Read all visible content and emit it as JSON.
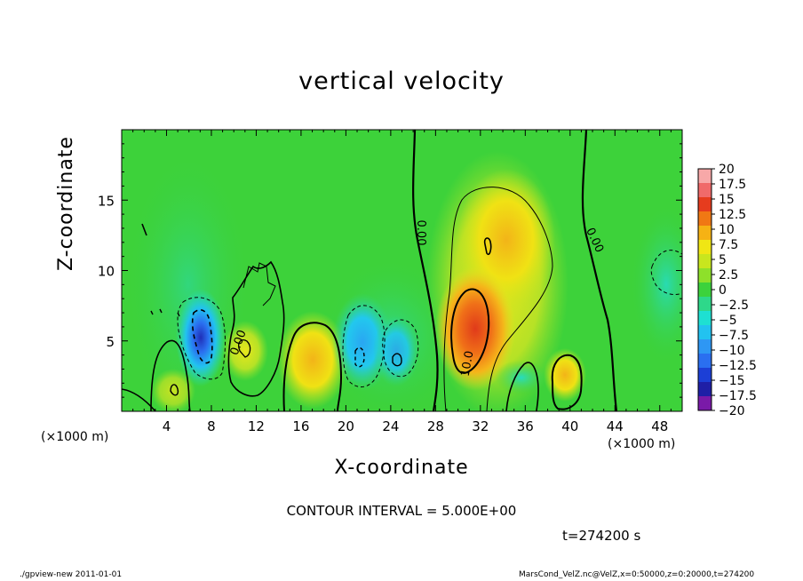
{
  "title": "vertical velocity",
  "chart_data": {
    "type": "heatmap",
    "title": "vertical velocity",
    "xlabel": "X-coordinate",
    "ylabel": "Z-coordinate",
    "x_unit": "(×1000 m)",
    "y_unit": "(×1000 m)",
    "xlim": [
      0,
      50
    ],
    "ylim": [
      0,
      20
    ],
    "xticks": [
      4,
      8,
      12,
      16,
      20,
      24,
      28,
      32,
      36,
      40,
      44,
      48
    ],
    "yticks": [
      5,
      10,
      15
    ],
    "colorbar": {
      "levels": [
        -20,
        -17.5,
        -15,
        -12.5,
        -10,
        -7.5,
        -5,
        -2.5,
        0,
        2.5,
        5,
        7.5,
        10,
        12.5,
        15,
        17.5,
        20
      ],
      "labels": [
        "20",
        "17.5",
        "15",
        "12.5",
        "10",
        "7.5",
        "5",
        "2.5",
        "0",
        "−2.5",
        "−5",
        "−7.5",
        "−10",
        "−12.5",
        "−15",
        "−17.5",
        "−20"
      ],
      "colors": [
        "#7a1aa8",
        "#1f1fa6",
        "#1c3fd6",
        "#2a6ff0",
        "#2e97f4",
        "#22c2f0",
        "#1ee0d2",
        "#2ed88a",
        "#3cd23c",
        "#8ee02a",
        "#c8e61e",
        "#f0e614",
        "#f6b214",
        "#f07814",
        "#e63c1e",
        "#f06a6a",
        "#f7a8a8"
      ]
    },
    "features": [
      {
        "x": 31,
        "z": 6,
        "value": 15,
        "sign": "updraft"
      },
      {
        "x": 32.5,
        "z": 11,
        "value": 9
      },
      {
        "x": 17.5,
        "z": 3.5,
        "value": 8
      },
      {
        "x": 39.5,
        "z": 2.5,
        "value": 8
      },
      {
        "x": 11,
        "z": 4,
        "value": 7
      },
      {
        "x": 7,
        "z": 4.5,
        "value": -14,
        "sign": "downdraft"
      },
      {
        "x": 21,
        "z": 4,
        "value": -9
      },
      {
        "x": 24,
        "z": 4,
        "value": -7
      },
      {
        "x": 48,
        "z": 9,
        "value": -3
      }
    ],
    "contour_labels": [
      "0.00",
      "0.00",
      "0.00",
      "10.0"
    ],
    "contour_interval": 5.0
  },
  "annotations": {
    "contour_interval": "CONTOUR INTERVAL = 5.000E+00",
    "time": "t=274200 s",
    "footer_left": "./gpview-new  2011-01-01",
    "footer_right": "MarsCond_VelZ.nc@VelZ,x=0:50000,z=0:20000,t=274200"
  }
}
